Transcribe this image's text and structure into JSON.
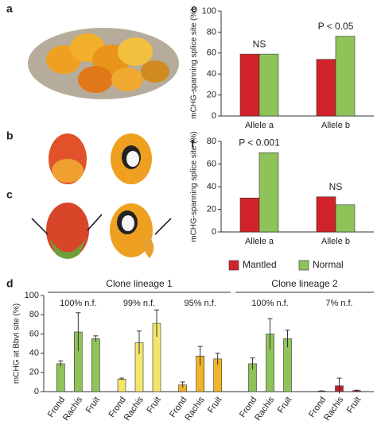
{
  "panel_labels": [
    "a",
    "b",
    "c",
    "d",
    "e",
    "f"
  ],
  "chart_data": [
    {
      "type": "bar",
      "ylabel": "mCHG-spanning splice site (%)",
      "categories": [
        "Allele a",
        "Allele b"
      ],
      "series": [
        {
          "color": "#d2232a",
          "values": [
            59,
            54
          ]
        },
        {
          "color": "#8fc35a",
          "values": [
            59,
            76
          ]
        }
      ],
      "annotations": [
        "NS",
        "P < 0.05"
      ],
      "ylim": [
        0,
        100
      ],
      "yticks": [
        0,
        20,
        40,
        60,
        80,
        100
      ]
    },
    {
      "type": "bar",
      "ylabel": "mCHG-spanning splice site (%)",
      "categories": [
        "Allele a",
        "Allele b"
      ],
      "series": [
        {
          "name": "Mantled",
          "color": "#d2232a",
          "values": [
            30,
            31
          ]
        },
        {
          "name": "Normal",
          "color": "#8fc35a",
          "values": [
            70,
            24
          ]
        }
      ],
      "annotations": [
        "P < 0.001",
        "NS"
      ],
      "legend": "bottom",
      "ylim": [
        0,
        80
      ],
      "yticks": [
        0,
        20,
        40,
        60,
        80
      ]
    },
    {
      "type": "errorbar",
      "ylabel": "mCHG at BbvI site (%)",
      "ylim": [
        0,
        100
      ],
      "yticks": [
        0,
        20,
        40,
        60,
        80,
        100
      ],
      "lineages": [
        {
          "name": "Clone lineage 1",
          "groups": [
            {
              "annotation": "100% n.f.",
              "color": "#8fc35a",
              "categories": [
                "Frond",
                "Rachis",
                "Fruit"
              ],
              "values": [
                29,
                62,
                55
              ],
              "errors": [
                3,
                20,
                3
              ]
            },
            {
              "annotation": "99% n.f.",
              "color": "#f4e66b",
              "categories": [
                "Frond",
                "Rachis",
                "Fruit"
              ],
              "values": [
                13,
                51,
                71
              ],
              "errors": [
                1,
                12,
                14
              ]
            },
            {
              "annotation": "95% n.f.",
              "color": "#f0b429",
              "categories": [
                "Frond",
                "Rachis",
                "Fruit"
              ],
              "values": [
                7,
                37,
                34
              ],
              "errors": [
                3,
                10,
                6
              ]
            }
          ]
        },
        {
          "name": "Clone lineage 2",
          "groups": [
            {
              "annotation": "100% n.f.",
              "color": "#8fc35a",
              "categories": [
                "Frond",
                "Rachis",
                "Fruit"
              ],
              "values": [
                29,
                60,
                55
              ],
              "errors": [
                6,
                16,
                9
              ]
            },
            {
              "annotation": "7% n.f.",
              "color": "#c0202a",
              "categories": [
                "Frond",
                "Rachis",
                "Fruit"
              ],
              "values": [
                0.5,
                6,
                1
              ],
              "errors": [
                0.3,
                8,
                0.5
              ]
            }
          ]
        }
      ]
    }
  ]
}
